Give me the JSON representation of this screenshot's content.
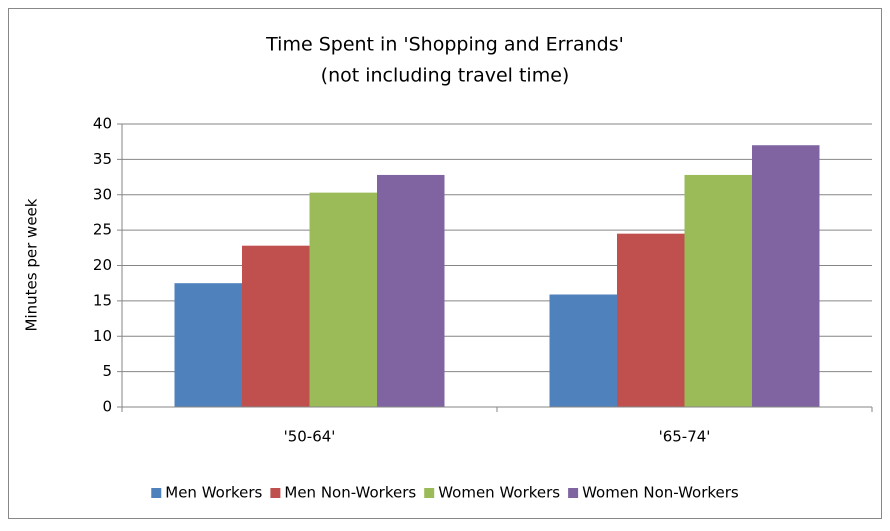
{
  "chart_data": {
    "type": "bar",
    "title": "Time Spent in 'Shopping and Errands'",
    "subtitle": "(not including travel time)",
    "y_label": "Minutes per week",
    "categories": [
      "'50-64'",
      "'65-74'"
    ],
    "series": [
      {
        "name": "Men Workers",
        "color": "#4f81bd",
        "values": [
          17.5,
          15.9
        ]
      },
      {
        "name": "Men Non-Workers",
        "color": "#c0504d",
        "values": [
          22.8,
          24.5
        ]
      },
      {
        "name": "Women Workers",
        "color": "#9bbb59",
        "values": [
          30.3,
          32.8
        ]
      },
      {
        "name": "Women Non-Workers",
        "color": "#8064a2",
        "values": [
          32.8,
          37.0
        ]
      }
    ],
    "ylim": [
      0,
      40
    ],
    "yticks": [
      0,
      5,
      10,
      15,
      20,
      25,
      30,
      35,
      40
    ],
    "grid": true,
    "legend": "bottom"
  }
}
